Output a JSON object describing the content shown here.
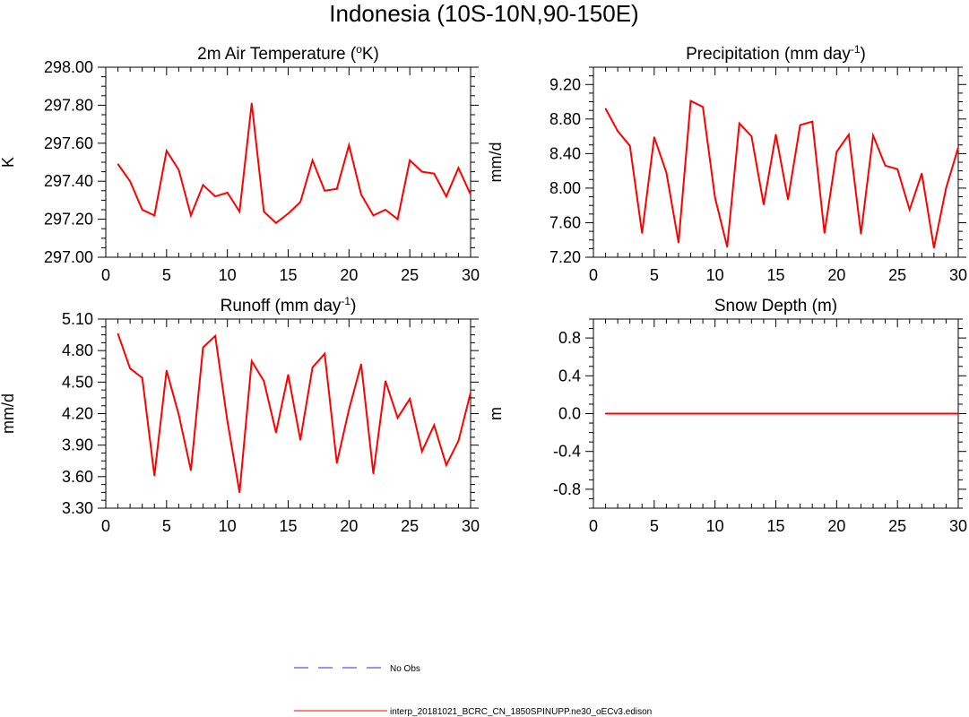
{
  "figure": {
    "title": "Indonesia (10S-10N,90-150E)"
  },
  "colors": {
    "model_line": "#ff0000",
    "obs_line": "#7070ff",
    "axis": "#000000"
  },
  "chart_data": [
    {
      "type": "line",
      "title": "2m Air Temperature (",
      "title_sup": "o",
      "title_end": "K)",
      "ylabel": "K",
      "xlabel": "",
      "xlim": [
        0,
        30
      ],
      "ylim": [
        297.0,
        298.0
      ],
      "xticks": [
        0,
        5,
        10,
        15,
        20,
        25,
        30
      ],
      "yticks": [
        297.0,
        297.2,
        297.4,
        297.6,
        297.8,
        298.0
      ],
      "ytick_labels": [
        "297.00",
        "297.20",
        "297.40",
        "297.60",
        "297.80",
        "298.00"
      ],
      "series": [
        {
          "name": "interp_20181021_BCRC_CN_1850SPINUPP.ne30_oECv3.edison",
          "x": [
            1,
            2,
            3,
            4,
            5,
            6,
            7,
            8,
            9,
            10,
            11,
            12,
            13,
            14,
            15,
            16,
            17,
            18,
            19,
            20,
            21,
            22,
            23,
            24,
            25,
            26,
            27,
            28,
            29,
            30
          ],
          "y": [
            297.49,
            297.4,
            297.25,
            297.22,
            297.56,
            297.46,
            297.22,
            297.38,
            297.32,
            297.34,
            297.24,
            297.81,
            297.24,
            297.18,
            297.23,
            297.29,
            297.51,
            297.35,
            297.36,
            297.59,
            297.33,
            297.22,
            297.25,
            297.2,
            297.51,
            297.45,
            297.44,
            297.32,
            297.47,
            297.33
          ]
        }
      ]
    },
    {
      "type": "line",
      "title": "Precipitation (mm day",
      "title_sup": "-1",
      "title_end": ")",
      "ylabel": "mm/d",
      "xlabel": "",
      "xlim": [
        0,
        30
      ],
      "ylim": [
        7.2,
        9.4
      ],
      "xticks": [
        0,
        5,
        10,
        15,
        20,
        25,
        30
      ],
      "yticks": [
        7.2,
        7.6,
        8.0,
        8.4,
        8.8,
        9.2
      ],
      "ytick_labels": [
        "7.20",
        "7.60",
        "8.00",
        "8.40",
        "8.80",
        "9.20"
      ],
      "series": [
        {
          "name": "interp_20181021_BCRC_CN_1850SPINUPP.ne30_oECv3.edison",
          "x": [
            1,
            2,
            3,
            4,
            5,
            6,
            7,
            8,
            9,
            10,
            11,
            12,
            13,
            14,
            15,
            16,
            17,
            18,
            19,
            20,
            21,
            22,
            23,
            24,
            25,
            26,
            27,
            28,
            29,
            30
          ],
          "y": [
            8.92,
            8.66,
            8.49,
            7.48,
            8.59,
            8.18,
            7.37,
            9.01,
            8.94,
            7.89,
            7.32,
            8.75,
            8.6,
            7.81,
            8.62,
            7.87,
            8.73,
            8.77,
            7.48,
            8.42,
            8.62,
            7.47,
            8.61,
            8.26,
            8.22,
            7.75,
            8.17,
            7.31,
            8.0,
            8.47
          ]
        }
      ]
    },
    {
      "type": "line",
      "title": "Runoff (mm day",
      "title_sup": "-1",
      "title_end": ")",
      "ylabel": "mm/d",
      "xlabel": "",
      "xlim": [
        0,
        30
      ],
      "ylim": [
        3.3,
        5.1
      ],
      "xticks": [
        0,
        5,
        10,
        15,
        20,
        25,
        30
      ],
      "yticks": [
        3.3,
        3.6,
        3.9,
        4.2,
        4.5,
        4.8,
        5.1
      ],
      "ytick_labels": [
        "3.30",
        "3.60",
        "3.90",
        "4.20",
        "4.50",
        "4.80",
        "5.10"
      ],
      "series": [
        {
          "name": "interp_20181021_BCRC_CN_1850SPINUPP.ne30_oECv3.edison",
          "x": [
            1,
            2,
            3,
            4,
            5,
            6,
            7,
            8,
            9,
            10,
            11,
            12,
            13,
            14,
            15,
            16,
            17,
            18,
            19,
            20,
            21,
            22,
            23,
            24,
            25,
            26,
            27,
            28,
            29,
            30
          ],
          "y": [
            4.96,
            4.63,
            4.54,
            3.61,
            4.61,
            4.19,
            3.66,
            4.83,
            4.94,
            4.13,
            3.45,
            4.7,
            4.51,
            4.02,
            4.57,
            3.95,
            4.64,
            4.77,
            3.73,
            4.24,
            4.67,
            3.63,
            4.51,
            4.16,
            4.34,
            3.84,
            4.09,
            3.71,
            3.94,
            4.4
          ]
        }
      ]
    },
    {
      "type": "line",
      "title": "Snow Depth (m)",
      "title_sup": "",
      "title_end": "",
      "ylabel": "m",
      "xlabel": "",
      "xlim": [
        0,
        30
      ],
      "ylim": [
        -1.0,
        1.0
      ],
      "xticks": [
        0,
        5,
        10,
        15,
        20,
        25,
        30
      ],
      "yticks": [
        -0.8,
        -0.4,
        0.0,
        0.4,
        0.8
      ],
      "ytick_labels": [
        "-0.8",
        "-0.4",
        "0.0",
        "0.4",
        "0.8"
      ],
      "series": [
        {
          "name": "interp_20181021_BCRC_CN_1850SPINUPP.ne30_oECv3.edison",
          "x": [
            1,
            2,
            3,
            4,
            5,
            6,
            7,
            8,
            9,
            10,
            11,
            12,
            13,
            14,
            15,
            16,
            17,
            18,
            19,
            20,
            21,
            22,
            23,
            24,
            25,
            26,
            27,
            28,
            29,
            30
          ],
          "y": [
            0,
            0,
            0,
            0,
            0,
            0,
            0,
            0,
            0,
            0,
            0,
            0,
            0,
            0,
            0,
            0,
            0,
            0,
            0,
            0,
            0,
            0,
            0,
            0,
            0,
            0,
            0,
            0,
            0,
            0
          ]
        }
      ]
    }
  ],
  "legend": {
    "entries": [
      {
        "label": "No Obs",
        "style": "dashed",
        "color": "#7070ff"
      },
      {
        "label": "interp_20181021_BCRC_CN_1850SPINUPP.ne30_oECv3.edison",
        "style": "solid",
        "color": "#ff0000"
      }
    ]
  }
}
